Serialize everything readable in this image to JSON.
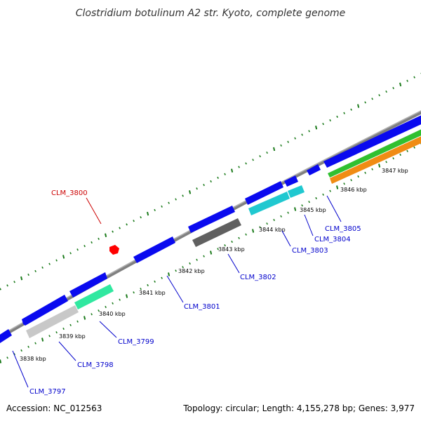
{
  "title": "Clostridium botulinum A2 str. Kyoto, complete genome",
  "footer": {
    "accession": "Accession: NC_012563",
    "summary": "Topology: circular; Length: 4,155,278 bp; Genes: 3,977"
  },
  "colors": {
    "backbone": "#808080",
    "blue_gene": "#0a0aef",
    "cyan_gene": "#20c8d0",
    "teal_gene": "#30e8a0",
    "gray_gene": "#606060",
    "lightgray_gene": "#c8c8c8",
    "green_gene": "#30c030",
    "orange_gene": "#f08c14",
    "red_marker": "#ff0000",
    "tick": "#1a7a1a",
    "label_blue": "#0000cc",
    "label_red": "#cc0000"
  },
  "scale_labels": [
    "3838 kbp",
    "3839 kbp",
    "3840 kbp",
    "3841 kbp",
    "3842 kbp",
    "3843 kbp",
    "3844 kbp",
    "3845 kbp",
    "3846 kbp",
    "3847 kbp"
  ],
  "gene_labels": [
    {
      "id": "CLM_3797",
      "color": "label_blue"
    },
    {
      "id": "CLM_3798",
      "color": "label_blue"
    },
    {
      "id": "CLM_3799",
      "color": "label_blue"
    },
    {
      "id": "CLM_3800",
      "color": "label_red"
    },
    {
      "id": "CLM_3801",
      "color": "label_blue"
    },
    {
      "id": "CLM_3802",
      "color": "label_blue"
    },
    {
      "id": "CLM_3803",
      "color": "label_blue"
    },
    {
      "id": "CLM_3804",
      "color": "label_blue"
    },
    {
      "id": "CLM_3805",
      "color": "label_blue"
    }
  ]
}
